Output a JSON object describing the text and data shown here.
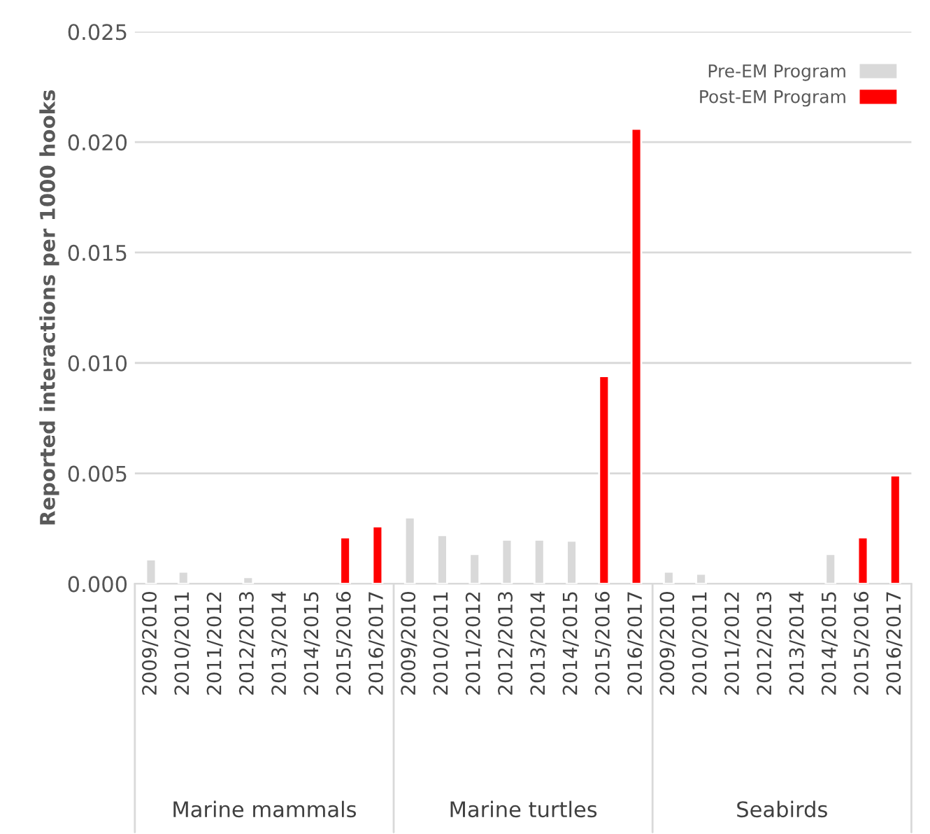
{
  "chart_data": {
    "type": "bar",
    "ylabel": "Reported interactions per 1000 hooks",
    "categories": [
      "2009/2010",
      "2010/2011",
      "2011/2012",
      "2012/2013",
      "2013/2014",
      "2014/2015",
      "2015/2016",
      "2016/2017",
      "2009/2010",
      "2010/2011",
      "2011/2012",
      "2012/2013",
      "2013/2014",
      "2014/2015",
      "2015/2016",
      "2016/2017",
      "2009/2010",
      "2010/2011",
      "2011/2012",
      "2012/2013",
      "2013/2014",
      "2014/2015",
      "2015/2016",
      "2016/2017"
    ],
    "series": [
      {
        "name": "Pre-EM Program",
        "color": "#d9d9d9",
        "values": [
          0.0011,
          0.00055,
          null,
          0.0003,
          null,
          null,
          null,
          null,
          0.003,
          0.0022,
          0.00135,
          0.002,
          0.002,
          0.00195,
          null,
          null,
          0.00055,
          0.00045,
          null,
          null,
          null,
          0.00135,
          null,
          null
        ]
      },
      {
        "name": "Post-EM Program",
        "color": "#ff0000",
        "values": [
          null,
          null,
          null,
          null,
          null,
          null,
          0.0021,
          0.0026,
          null,
          null,
          null,
          null,
          null,
          null,
          0.0094,
          0.0206,
          null,
          null,
          null,
          null,
          null,
          null,
          0.0021,
          0.0049
        ]
      }
    ],
    "annotations": [
      "Marine mammals",
      "Marine turtles",
      "Seabirds"
    ],
    "ylim": [
      0,
      0.025
    ],
    "yticks": [
      {
        "value": 0,
        "label": "0.000"
      },
      {
        "value": 0.005,
        "label": "0.005"
      },
      {
        "value": 0.01,
        "label": "0.010"
      },
      {
        "value": 0.015,
        "label": "0.015"
      },
      {
        "value": 0.02,
        "label": "0.020"
      },
      {
        "value": 0.025,
        "label": "0.025"
      }
    ],
    "grid": "y",
    "legend": "top right"
  }
}
